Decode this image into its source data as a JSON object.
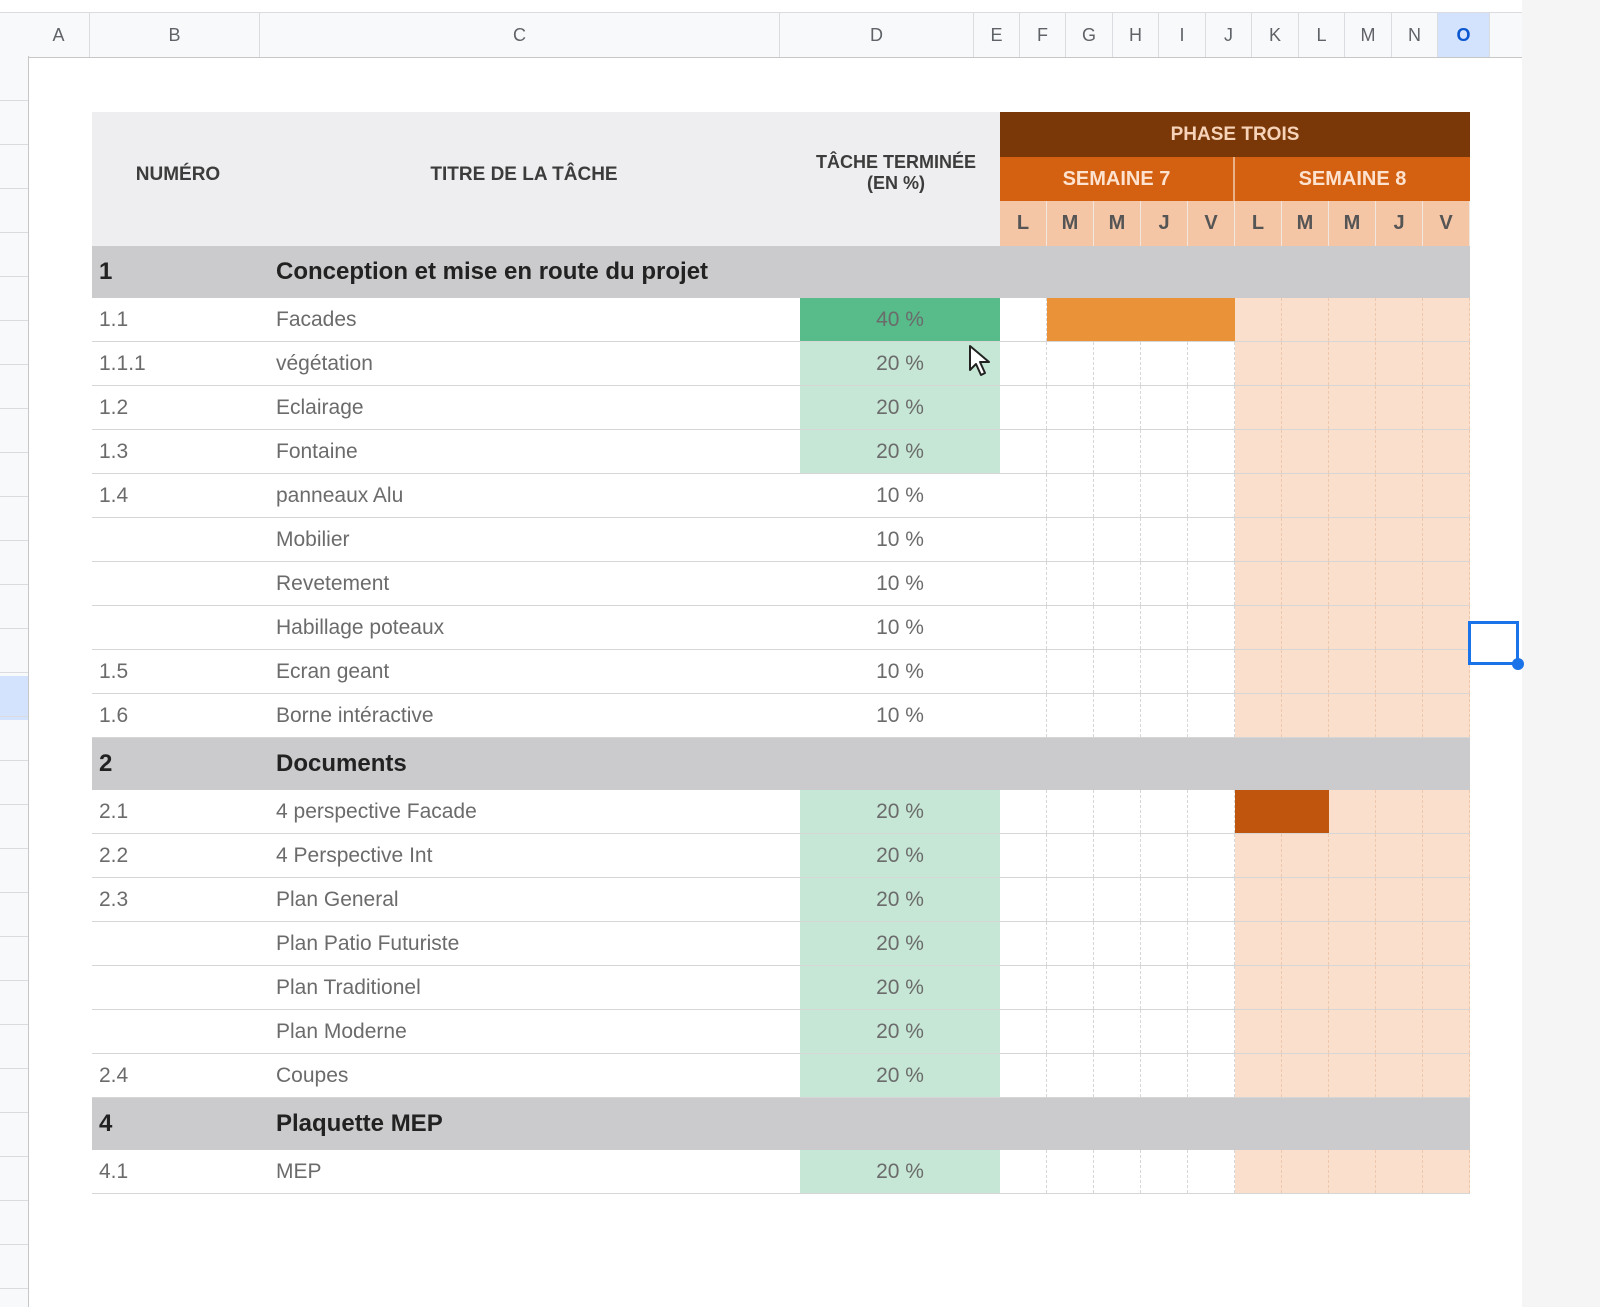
{
  "column_headers": [
    "A",
    "B",
    "C",
    "D",
    "E",
    "F",
    "G",
    "H",
    "I",
    "J",
    "K",
    "L",
    "M",
    "N",
    "O"
  ],
  "selected_column": "O",
  "header": {
    "numero": "NUMÉRO",
    "titre": "TITRE DE LA TÂCHE",
    "tache_terminee": "TÂCHE TERMINÉE",
    "en_pct": "(EN %)",
    "phase": "PHASE TROIS",
    "weeks": [
      "SEMAINE 7",
      "SEMAINE 8"
    ],
    "days": [
      "L",
      "M",
      "M",
      "J",
      "V",
      "L",
      "M",
      "M",
      "J",
      "V"
    ]
  },
  "rows": [
    {
      "type": "section",
      "num": "1",
      "title": "Conception et mise en route du projet"
    },
    {
      "type": "task",
      "num": "1.1",
      "title": "Facades",
      "pct": "40 %",
      "fill": "dark",
      "bar": [
        1,
        2,
        3,
        4
      ]
    },
    {
      "type": "task",
      "num": "1.1.1",
      "title": "végétation",
      "pct": "20 %",
      "fill": "light",
      "bar": []
    },
    {
      "type": "task",
      "num": "1.2",
      "title": "Eclairage",
      "pct": "20 %",
      "fill": "light",
      "bar": []
    },
    {
      "type": "task",
      "num": "1.3",
      "title": "Fontaine",
      "pct": "20 %",
      "fill": "light",
      "bar": []
    },
    {
      "type": "task",
      "num": "1.4",
      "title": "panneaux Alu",
      "pct": "10 %",
      "fill": "none",
      "bar": []
    },
    {
      "type": "task",
      "num": "",
      "title": "Mobilier",
      "pct": "10 %",
      "fill": "none",
      "bar": []
    },
    {
      "type": "task",
      "num": "",
      "title": "Revetement",
      "pct": "10 %",
      "fill": "none",
      "bar": []
    },
    {
      "type": "task",
      "num": "",
      "title": "Habillage poteaux",
      "pct": "10 %",
      "fill": "none",
      "bar": []
    },
    {
      "type": "task",
      "num": "1.5",
      "title": "Ecran geant",
      "pct": "10 %",
      "fill": "none",
      "bar": []
    },
    {
      "type": "task",
      "num": "1.6",
      "title": "Borne intéractive",
      "pct": "10 %",
      "fill": "none",
      "bar": []
    },
    {
      "type": "section",
      "num": "2",
      "title": "Documents"
    },
    {
      "type": "task",
      "num": "2.1",
      "title": "4 perspective Facade",
      "pct": "20 %",
      "fill": "light",
      "bar": [
        5,
        6
      ]
    },
    {
      "type": "task",
      "num": "2.2",
      "title": "4 Perspective Int",
      "pct": "20 %",
      "fill": "light",
      "bar": []
    },
    {
      "type": "task",
      "num": "2.3",
      "title": "Plan General",
      "pct": "20 %",
      "fill": "light",
      "bar": []
    },
    {
      "type": "task",
      "num": "",
      "title": "Plan Patio Futuriste",
      "pct": "20 %",
      "fill": "light",
      "bar": []
    },
    {
      "type": "task",
      "num": "",
      "title": "Plan Traditionel",
      "pct": "20 %",
      "fill": "light",
      "bar": []
    },
    {
      "type": "task",
      "num": "",
      "title": "Plan Moderne",
      "pct": "20 %",
      "fill": "light",
      "bar": []
    },
    {
      "type": "task",
      "num": "2.4",
      "title": "Coupes",
      "pct": "20 %",
      "fill": "light",
      "bar": []
    },
    {
      "type": "section",
      "num": "4",
      "title": "Plaquette MEP"
    },
    {
      "type": "task",
      "num": "4.1",
      "title": "MEP",
      "pct": "20 %",
      "fill": "light",
      "bar": []
    }
  ],
  "colors": {
    "phase": "#7a3808",
    "week": "#d46011",
    "day_header": "#f5c6a6",
    "week8_bg": "#fbdfcd",
    "bar_week7": "#e99238",
    "bar_week8": "#c0560d",
    "pct_light": "#c6e7d6",
    "pct_dark": "#57bb8a",
    "section_bg": "#cbcbcd"
  }
}
